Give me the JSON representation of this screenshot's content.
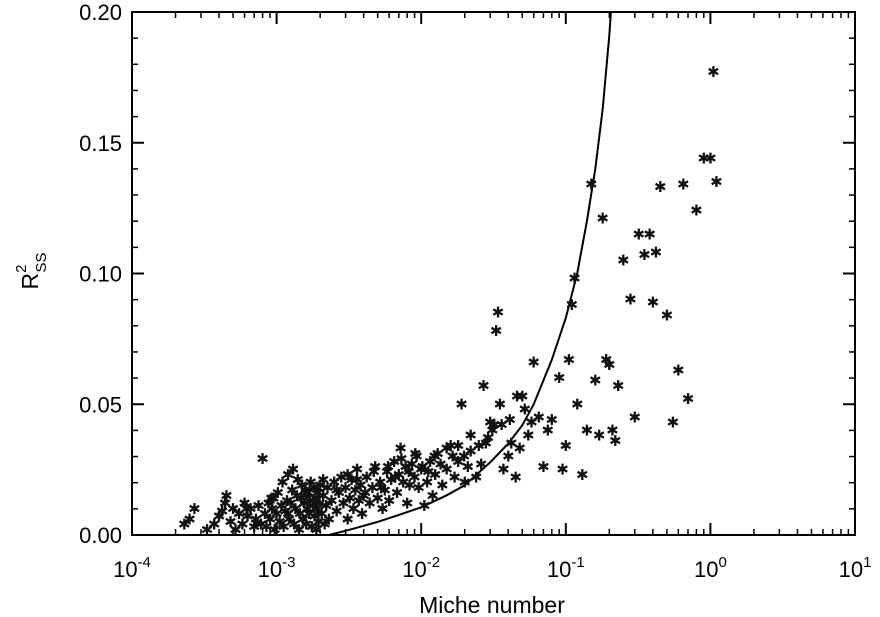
{
  "chart_data": {
    "type": "scatter",
    "xlabel": "Miche number",
    "ylabel": "R",
    "ylabel_sup": "2",
    "ylabel_sub": "SS",
    "x_scale": "log",
    "xlim": [
      0.0001,
      10
    ],
    "ylim": [
      0,
      0.2
    ],
    "grid": false,
    "legend": "none",
    "marker": "✱",
    "x_ticks": [
      {
        "value": 0.0001,
        "base": "10",
        "exp": "-4"
      },
      {
        "value": 0.001,
        "base": "10",
        "exp": "-3"
      },
      {
        "value": 0.01,
        "base": "10",
        "exp": "-2"
      },
      {
        "value": 0.1,
        "base": "10",
        "exp": "-1"
      },
      {
        "value": 1,
        "base": "10",
        "exp": "0"
      },
      {
        "value": 10,
        "base": "10",
        "exp": "1"
      }
    ],
    "y_ticks": [
      {
        "value": 0.0,
        "label": "0.00"
      },
      {
        "value": 0.05,
        "label": "0.05"
      },
      {
        "value": 0.1,
        "label": "0.10"
      },
      {
        "value": 0.15,
        "label": "0.15"
      },
      {
        "value": 0.2,
        "label": "0.20"
      }
    ],
    "curve": {
      "x": [
        0.0023,
        0.003,
        0.004,
        0.005,
        0.007,
        0.01,
        0.015,
        0.02,
        0.03,
        0.04,
        0.05,
        0.06,
        0.08,
        0.1,
        0.12,
        0.14,
        0.16,
        0.18,
        0.2,
        0.205
      ],
      "y": [
        0.0,
        0.0016,
        0.0035,
        0.005,
        0.0077,
        0.0106,
        0.0152,
        0.019,
        0.0278,
        0.035,
        0.042,
        0.05,
        0.067,
        0.083,
        0.1,
        0.12,
        0.14,
        0.163,
        0.191,
        0.2
      ]
    },
    "points": {
      "x": [
        0.00023,
        0.00025,
        0.00027,
        0.00033,
        0.00037,
        0.0004,
        0.00042,
        0.00044,
        0.00045,
        0.00048,
        0.0005,
        0.00052,
        0.00055,
        0.00058,
        0.0006,
        0.00063,
        0.00066,
        0.0007,
        0.00072,
        0.00075,
        0.00078,
        0.0008,
        0.00083,
        0.00085,
        0.00088,
        0.0009,
        0.00093,
        0.00095,
        0.00097,
        0.001,
        0.00102,
        0.00105,
        0.00108,
        0.0011,
        0.00112,
        0.00115,
        0.00118,
        0.0012,
        0.00122,
        0.00125,
        0.00128,
        0.0013,
        0.00132,
        0.00135,
        0.00138,
        0.0014,
        0.00143,
        0.00145,
        0.00148,
        0.0015,
        0.00152,
        0.00155,
        0.00158,
        0.0016,
        0.00163,
        0.00165,
        0.00168,
        0.0017,
        0.00172,
        0.00175,
        0.00178,
        0.0018,
        0.00183,
        0.00185,
        0.00188,
        0.0019,
        0.00193,
        0.00195,
        0.00198,
        0.002,
        0.00205,
        0.0021,
        0.00215,
        0.0022,
        0.00225,
        0.0023,
        0.0024,
        0.0025,
        0.0026,
        0.0027,
        0.0028,
        0.0029,
        0.003,
        0.0031,
        0.0032,
        0.0033,
        0.0034,
        0.0035,
        0.0036,
        0.0037,
        0.0038,
        0.0039,
        0.004,
        0.0042,
        0.0044,
        0.0046,
        0.0048,
        0.005,
        0.0052,
        0.0054,
        0.0056,
        0.0058,
        0.006,
        0.0062,
        0.0065,
        0.0068,
        0.007,
        0.0072,
        0.0075,
        0.0078,
        0.008,
        0.0083,
        0.0086,
        0.009,
        0.0093,
        0.0096,
        0.01,
        0.0105,
        0.011,
        0.0115,
        0.012,
        0.0125,
        0.013,
        0.014,
        0.015,
        0.016,
        0.017,
        0.018,
        0.019,
        0.02,
        0.021,
        0.022,
        0.024,
        0.026,
        0.027,
        0.028,
        0.03,
        0.032,
        0.033,
        0.034,
        0.035,
        0.037,
        0.04,
        0.042,
        0.045,
        0.048,
        0.05,
        0.055,
        0.06,
        0.065,
        0.07,
        0.075,
        0.08,
        0.09,
        0.095,
        0.1,
        0.105,
        0.11,
        0.115,
        0.12,
        0.13,
        0.14,
        0.15,
        0.16,
        0.17,
        0.18,
        0.19,
        0.2,
        0.21,
        0.22,
        0.23,
        0.25,
        0.28,
        0.3,
        0.32,
        0.35,
        0.38,
        0.4,
        0.42,
        0.45,
        0.5,
        0.55,
        0.6,
        0.65,
        0.7,
        0.8,
        0.9,
        1.0,
        1.05,
        1.1,
        0.00062,
        0.00092,
        0.0012,
        0.0016,
        0.0021,
        0.0026,
        0.0031,
        0.0036,
        0.0041,
        0.0047,
        0.0053,
        0.0059,
        0.0066,
        0.0073,
        0.0082,
        0.0091,
        0.0102,
        0.0112,
        0.0124,
        0.0136,
        0.015,
        0.0165,
        0.018,
        0.0198,
        0.022,
        0.025,
        0.029,
        0.031,
        0.036,
        0.041,
        0.046,
        0.052,
        0.058
      ],
      "y": [
        0.004,
        0.006,
        0.01,
        0.002,
        0.004,
        0.007,
        0.009,
        0.012,
        0.015,
        0.005,
        0.01,
        0.002,
        0.008,
        0.004,
        0.012,
        0.007,
        0.01,
        0.003,
        0.006,
        0.011,
        0.004,
        0.029,
        0.008,
        0.003,
        0.012,
        0.006,
        0.01,
        0.014,
        0.002,
        0.008,
        0.016,
        0.005,
        0.011,
        0.02,
        0.003,
        0.009,
        0.013,
        0.023,
        0.006,
        0.012,
        0.017,
        0.025,
        0.004,
        0.01,
        0.015,
        0.021,
        0.002,
        0.008,
        0.014,
        0.019,
        0.006,
        0.012,
        0.017,
        0.004,
        0.01,
        0.016,
        0.008,
        0.013,
        0.02,
        0.003,
        0.011,
        0.018,
        0.007,
        0.014,
        0.002,
        0.01,
        0.016,
        0.005,
        0.012,
        0.019,
        0.008,
        0.015,
        0.004,
        0.011,
        0.018,
        0.006,
        0.013,
        0.02,
        0.009,
        0.016,
        0.022,
        0.012,
        0.018,
        0.006,
        0.014,
        0.021,
        0.01,
        0.017,
        0.025,
        0.013,
        0.019,
        0.008,
        0.015,
        0.022,
        0.012,
        0.018,
        0.026,
        0.014,
        0.02,
        0.01,
        0.017,
        0.024,
        0.013,
        0.021,
        0.028,
        0.016,
        0.023,
        0.033,
        0.02,
        0.026,
        0.012,
        0.019,
        0.027,
        0.022,
        0.03,
        0.018,
        0.025,
        0.011,
        0.02,
        0.028,
        0.015,
        0.023,
        0.031,
        0.019,
        0.025,
        0.034,
        0.022,
        0.028,
        0.05,
        0.02,
        0.026,
        0.032,
        0.022,
        0.027,
        0.057,
        0.035,
        0.043,
        0.042,
        0.078,
        0.085,
        0.05,
        0.025,
        0.03,
        0.035,
        0.022,
        0.033,
        0.053,
        0.038,
        0.066,
        0.045,
        0.026,
        0.04,
        0.044,
        0.06,
        0.025,
        0.034,
        0.067,
        0.088,
        0.098,
        0.05,
        0.023,
        0.04,
        0.134,
        0.059,
        0.038,
        0.121,
        0.067,
        0.065,
        0.04,
        0.036,
        0.057,
        0.105,
        0.09,
        0.045,
        0.115,
        0.107,
        0.115,
        0.089,
        0.108,
        0.133,
        0.084,
        0.043,
        0.063,
        0.134,
        0.052,
        0.124,
        0.144,
        0.144,
        0.177,
        0.135,
        0.01,
        0.014,
        0.008,
        0.016,
        0.021,
        0.017,
        0.023,
        0.021,
        0.016,
        0.024,
        0.018,
        0.026,
        0.022,
        0.029,
        0.024,
        0.031,
        0.026,
        0.024,
        0.03,
        0.027,
        0.033,
        0.03,
        0.034,
        0.03,
        0.038,
        0.034,
        0.037,
        0.04,
        0.042,
        0.044,
        0.053,
        0.048,
        0.043
      ]
    }
  }
}
